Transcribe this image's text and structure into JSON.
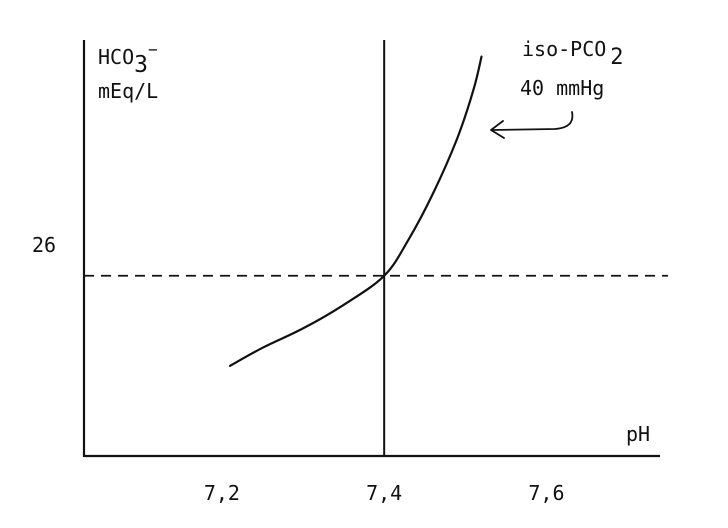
{
  "chart_data": {
    "type": "line",
    "ylabel_line1": "HCO",
    "ylabel_sub": "3",
    "ylabel_sup": "−",
    "ylabel_line2": "mEq/L",
    "xlabel": "pH",
    "xticks": [
      {
        "value": 7.2,
        "label": "7,2"
      },
      {
        "value": 7.4,
        "label": "7,4"
      },
      {
        "value": 7.6,
        "label": "7,6"
      }
    ],
    "yticks": [
      {
        "value": 26,
        "label": "26"
      }
    ],
    "xlim": [
      7.03,
      7.74
    ],
    "ylim": [
      13,
      43
    ],
    "grid": false,
    "reference_lines": {
      "vertical_x": 7.4,
      "horizontal_y": 26
    },
    "series": [
      {
        "name": "iso-PCO2 40 mmHg",
        "x": [
          7.21,
          7.25,
          7.3,
          7.35,
          7.4,
          7.43,
          7.46,
          7.49,
          7.51,
          7.52
        ],
        "y": [
          19.5,
          20.8,
          22.2,
          23.9,
          26.0,
          28.6,
          31.9,
          35.9,
          39.4,
          41.8
        ]
      }
    ],
    "annotation": {
      "line1": "iso-PCO",
      "line1_sub": "2",
      "line2": "40 mmHg"
    }
  }
}
